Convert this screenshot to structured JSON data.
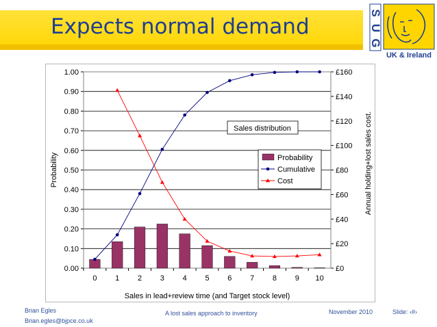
{
  "slide": {
    "title": "Expects normal demand",
    "footer_author": "Brian Egles",
    "footer_email": "Brian.egles@bjpce.co.uk",
    "footer_center": "A lost sales approach to inventory",
    "footer_date": "November 2010",
    "footer_slide": "Slide: ‹#›"
  },
  "logo": {
    "letters": [
      "S",
      "U",
      "G"
    ],
    "subtitle": "UK & Ireland",
    "color": "#1f3f8f"
  },
  "colors": {
    "banner_yellow": "#ffd500",
    "title_blue": "#1f3f8f",
    "bar": "#993366",
    "cumulative": "#000080",
    "cost": "#ff0000"
  },
  "chart_data": {
    "type": "bar",
    "xlabel": "Sales in lead+review time (and Target stock level)",
    "ylabel_left": "Probability",
    "ylabel_right": "Annual holding+lost sales cost.",
    "annotation": "Sales distribution",
    "ylim_left": [
      0,
      1
    ],
    "ylim_right": [
      0,
      160
    ],
    "grid": true,
    "legend_position": "right",
    "categories": [
      "0",
      "1",
      "2",
      "3",
      "4",
      "5",
      "6",
      "7",
      "8",
      "9",
      "10"
    ],
    "yticks_left": [
      "0.00",
      "0.10",
      "0.20",
      "0.30",
      "0.40",
      "0.50",
      "0.60",
      "0.70",
      "0.80",
      "0.90",
      "1.00"
    ],
    "yticks_right": [
      "£0",
      "£20",
      "£40",
      "£60",
      "£80",
      "£100",
      "£120",
      "£140",
      "£160"
    ],
    "series": [
      {
        "name": "Probability",
        "type": "bar",
        "axis": "left",
        "values": [
          0.045,
          0.135,
          0.21,
          0.225,
          0.175,
          0.115,
          0.06,
          0.03,
          0.013,
          0.004,
          0.002
        ]
      },
      {
        "name": "Cumulative",
        "type": "line",
        "axis": "left",
        "values": [
          0.045,
          0.17,
          0.38,
          0.605,
          0.78,
          0.895,
          0.955,
          0.985,
          0.997,
          1.0,
          1.0
        ]
      },
      {
        "name": "Cost",
        "type": "line",
        "axis": "right",
        "values": [
          null,
          145,
          108,
          70,
          40,
          22,
          14,
          10,
          9.5,
          10,
          11
        ]
      }
    ]
  }
}
